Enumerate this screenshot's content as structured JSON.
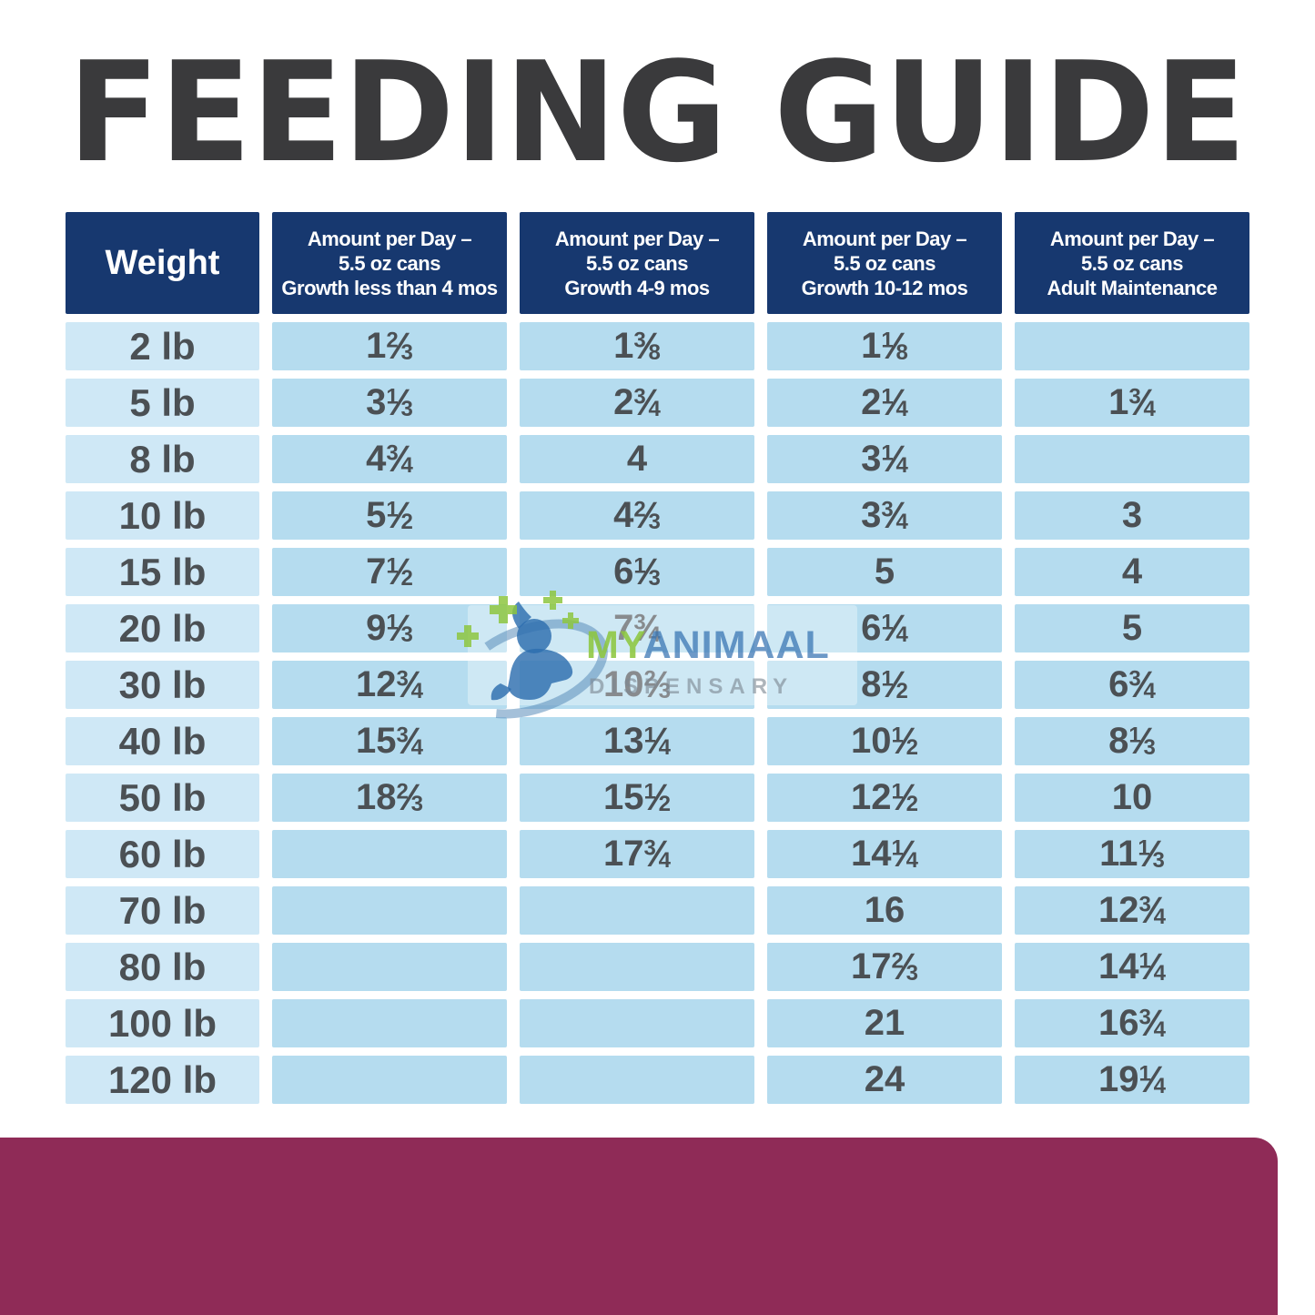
{
  "chart_data": {
    "type": "table",
    "title": "FEEDING GUIDE",
    "columns": [
      "Weight",
      "Amount per Day – 5.5 oz cans Growth less than 4 mos",
      "Amount per Day – 5.5 oz cans Growth 4-9 mos",
      "Amount per Day – 5.5 oz cans Growth 10-12 mos",
      "Amount per Day – 5.5 oz cans Adult Maintenance"
    ],
    "header_lines": [
      [
        "Weight"
      ],
      [
        "Amount per Day –",
        "5.5 oz cans",
        "Growth less than 4 mos"
      ],
      [
        "Amount per Day –",
        "5.5 oz cans",
        "Growth 4-9 mos"
      ],
      [
        "Amount per Day –",
        "5.5 oz cans",
        "Growth 10-12 mos"
      ],
      [
        "Amount per Day –",
        "5.5 oz cans",
        "Adult Maintenance"
      ]
    ],
    "rows": [
      [
        "2 lb",
        "1 2/3",
        "1 3/8",
        "1 1/8",
        ""
      ],
      [
        "5 lb",
        "3 1/3",
        "2 3/4",
        "2 1/4",
        "1 3/4"
      ],
      [
        "8 lb",
        "4 3/4",
        "4",
        "3 1/4",
        ""
      ],
      [
        "10 lb",
        "5 1/2",
        "4 2/3",
        "3 3/4",
        "3"
      ],
      [
        "15 lb",
        "7 1/2",
        "6 1/3",
        "5",
        "4"
      ],
      [
        "20 lb",
        "9 1/3",
        "7 3/4",
        "6 1/4",
        "5"
      ],
      [
        "30 lb",
        "12 3/4",
        "10 2/3",
        "8 1/2",
        "6 3/4"
      ],
      [
        "40 lb",
        "15 3/4",
        "13 1/4",
        "10 1/2",
        "8 1/3"
      ],
      [
        "50 lb",
        "18 2/3",
        "15 1/2",
        "12 1/2",
        "10"
      ],
      [
        "60 lb",
        "",
        "17 3/4",
        "14 1/4",
        "11 1/3"
      ],
      [
        "70 lb",
        "",
        "",
        "16",
        "12 3/4"
      ],
      [
        "80 lb",
        "",
        "",
        "17 2/3",
        "14 1/4"
      ],
      [
        "100 lb",
        "",
        "",
        "21",
        "16 3/4"
      ],
      [
        "120 lb",
        "",
        "",
        "24",
        "19 1/4"
      ]
    ]
  },
  "watermark": {
    "brand_green": "MY",
    "brand_blue": "ANIMAAL",
    "subtitle": "DISPENSARY"
  },
  "colors": {
    "header_navy": "#17386f",
    "weight_cell_blue": "#cfe8f6",
    "data_cell_blue": "#b5dcef",
    "value_text_gray": "#4b5054",
    "title_gray": "#3a3a3c",
    "footer_maroon": "#8f2b57",
    "watermark_green": "#8dc63f",
    "watermark_blue": "#3472b2"
  }
}
